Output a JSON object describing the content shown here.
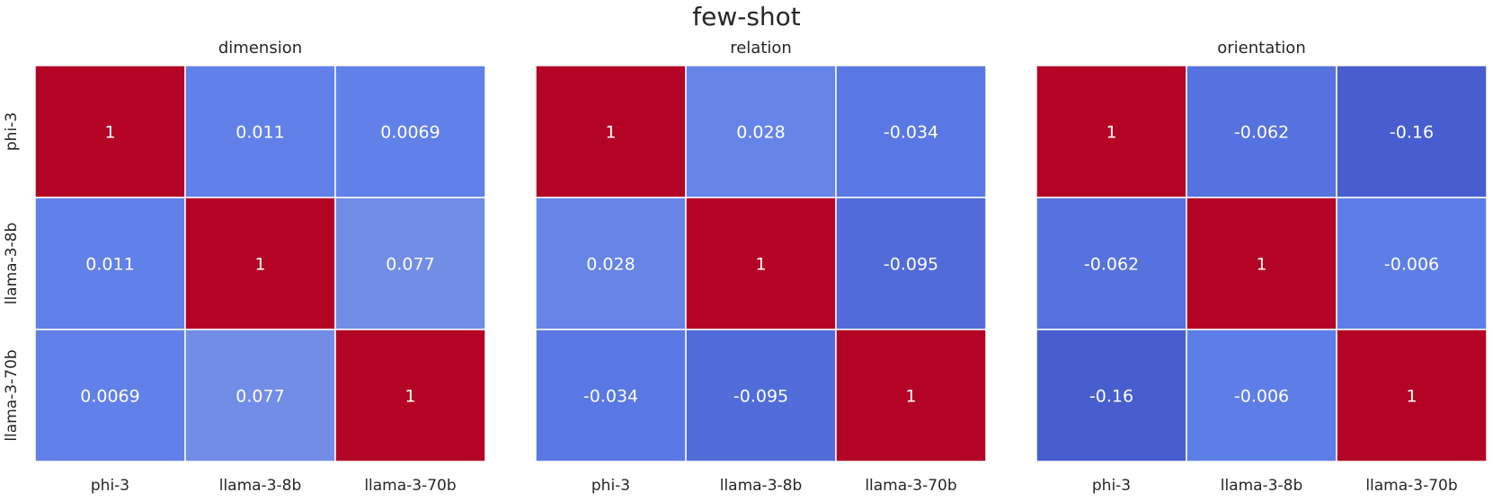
{
  "figure": {
    "title": "few-shot"
  },
  "chart_data": [
    {
      "type": "heatmap",
      "title": "dimension",
      "x_categories": [
        "phi-3",
        "llama-3-8b",
        "llama-3-70b"
      ],
      "y_categories": [
        "phi-3",
        "llama-3-8b",
        "llama-3-70b"
      ],
      "values": [
        [
          1,
          0.011,
          0.0069
        ],
        [
          0.011,
          1,
          0.077
        ],
        [
          0.0069,
          0.077,
          1
        ]
      ],
      "cell_labels": [
        [
          "1",
          "0.011",
          "0.0069"
        ],
        [
          "0.011",
          "1",
          "0.077"
        ],
        [
          "0.0069",
          "0.077",
          "1"
        ]
      ],
      "colormap": "coolwarm",
      "colorbar": false,
      "gridlines": false
    },
    {
      "type": "heatmap",
      "title": "relation",
      "x_categories": [
        "phi-3",
        "llama-3-8b",
        "llama-3-70b"
      ],
      "y_categories": [
        "phi-3",
        "llama-3-8b",
        "llama-3-70b"
      ],
      "values": [
        [
          1,
          0.028,
          -0.034
        ],
        [
          0.028,
          1,
          -0.095
        ],
        [
          -0.034,
          -0.095,
          1
        ]
      ],
      "cell_labels": [
        [
          "1",
          "0.028",
          "-0.034"
        ],
        [
          "0.028",
          "1",
          "-0.095"
        ],
        [
          "-0.034",
          "-0.095",
          "1"
        ]
      ],
      "colormap": "coolwarm",
      "colorbar": false,
      "gridlines": false
    },
    {
      "type": "heatmap",
      "title": "orientation",
      "x_categories": [
        "phi-3",
        "llama-3-8b",
        "llama-3-70b"
      ],
      "y_categories": [
        "phi-3",
        "llama-3-8b",
        "llama-3-70b"
      ],
      "values": [
        [
          1,
          -0.062,
          -0.16
        ],
        [
          -0.062,
          1,
          -0.006
        ],
        [
          -0.16,
          -0.006,
          1
        ]
      ],
      "cell_labels": [
        [
          "1",
          "-0.062",
          "-0.16"
        ],
        [
          "-0.062",
          "1",
          "-0.006"
        ],
        [
          "-0.16",
          "-0.006",
          "1"
        ]
      ],
      "colormap": "coolwarm",
      "colorbar": false,
      "gridlines": false
    }
  ],
  "colors": {
    "high": "#b40426",
    "low": "#3b4cc0",
    "mid_low": "#5f7fe8",
    "cell_border": "#ffffff",
    "text_on_cell": "#ffffff",
    "axis_text": "#262626"
  }
}
